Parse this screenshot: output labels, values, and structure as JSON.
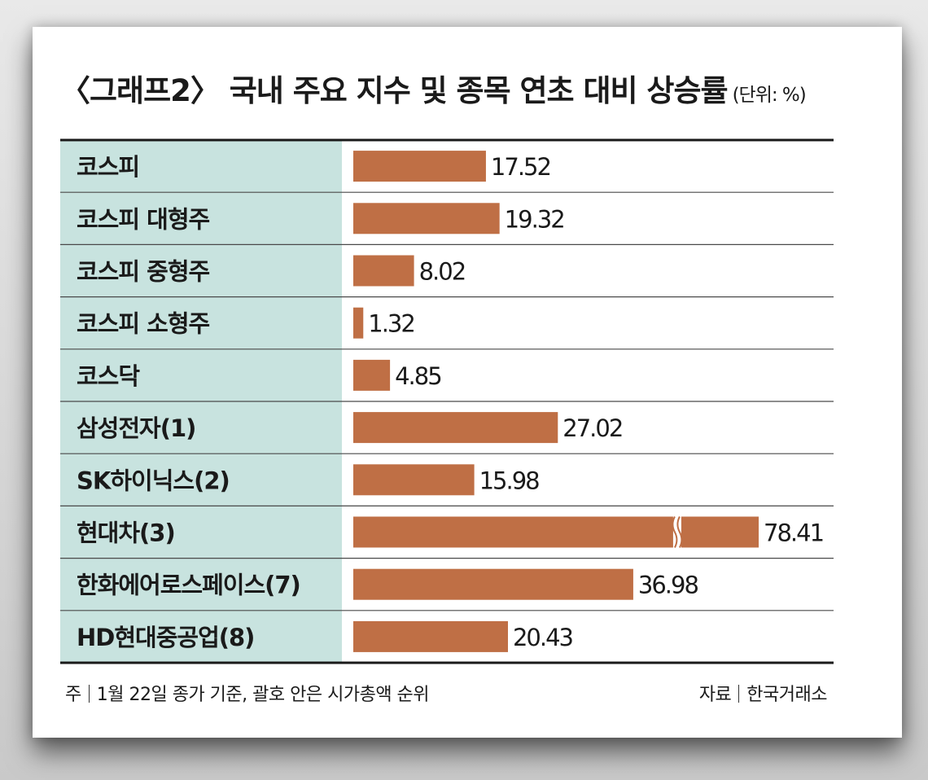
{
  "header": {
    "title": "〈그래프2〉 국내 주요 지수 및 종목 연초 대비 상승률",
    "unit": "(단위: %)"
  },
  "chart_data": {
    "type": "bar",
    "orientation": "horizontal",
    "title": "〈그래프2〉 국내 주요 지수 및 종목 연초 대비 상승률",
    "unit": "(단위: %)",
    "categories": [
      "코스피",
      "코스피 대형주",
      "코스피 중형주",
      "코스피 소형주",
      "코스닥",
      "삼성전자(1)",
      "SK하이닉스(2)",
      "현대차(3)",
      "한화에어로스페이스(7)",
      "HD현대중공업(8)"
    ],
    "values": [
      17.52,
      19.32,
      8.02,
      1.32,
      4.85,
      27.02,
      15.98,
      78.41,
      36.98,
      20.43
    ],
    "value_labels": [
      "17.52",
      "19.32",
      "8.02",
      "1.32",
      "4.85",
      "27.02",
      "15.98",
      "78.41",
      "36.98",
      "20.43"
    ],
    "broken_bars": [
      7
    ],
    "bar_color": "#bf6f45",
    "label_bg_color": "#c8e3df",
    "grid": false,
    "legend": "none"
  },
  "footer": {
    "note_prefix": "주",
    "note_text": "1월 22일 종가 기준, 괄호 안은 시가총액 순위",
    "source_prefix": "자료",
    "source_text": "한국거래소"
  }
}
